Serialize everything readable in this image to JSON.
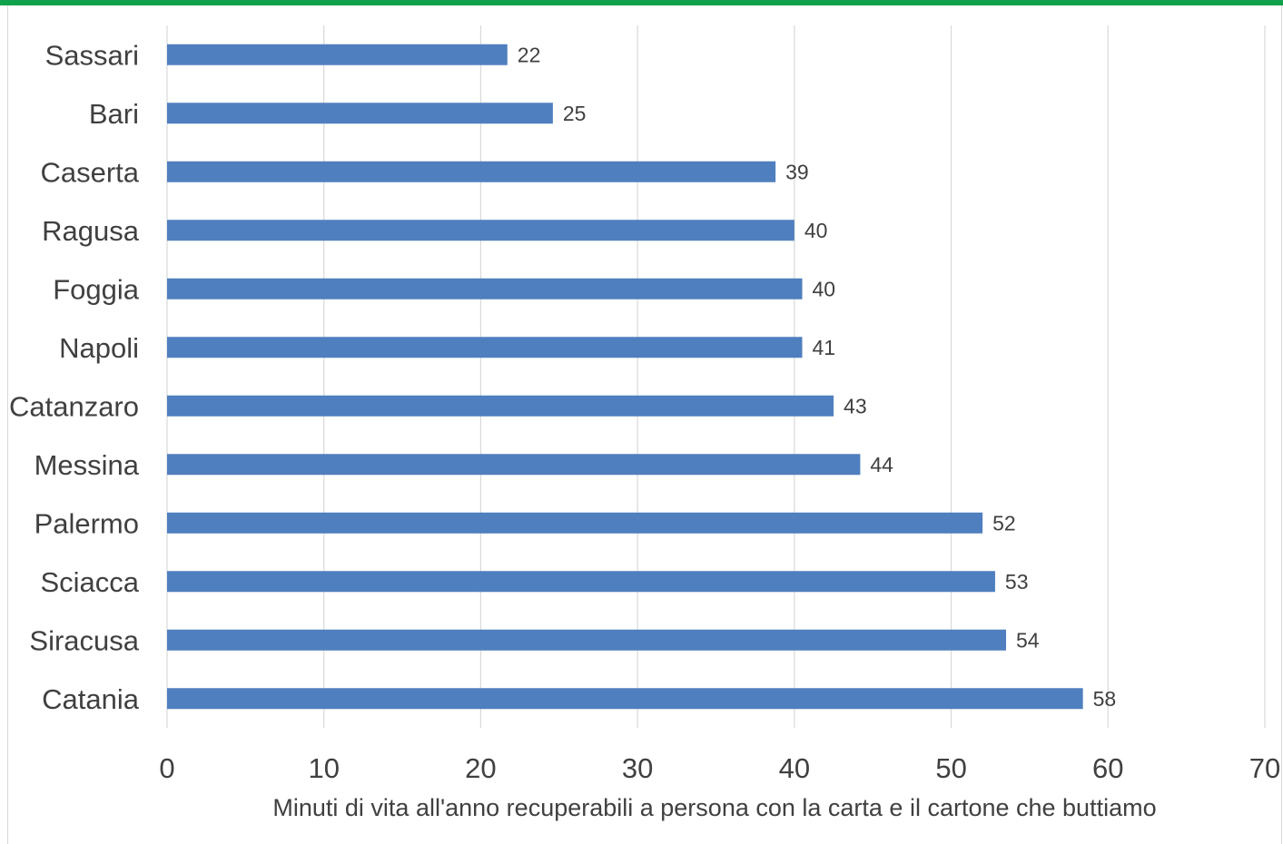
{
  "chart_data": {
    "type": "bar",
    "orientation": "horizontal",
    "categories": [
      "Sassari",
      "Bari",
      "Caserta",
      "Ragusa",
      "Foggia",
      "Napoli",
      "Catanzaro",
      "Messina",
      "Palermo",
      "Sciacca",
      "Siracusa",
      "Catania"
    ],
    "values": [
      21.7,
      24.6,
      38.8,
      40.0,
      40.5,
      40.5,
      42.5,
      44.2,
      52.0,
      52.8,
      53.5,
      58.4
    ],
    "data_labels": [
      "22",
      "25",
      "39",
      "40",
      "40",
      "41",
      "43",
      "44",
      "52",
      "53",
      "54",
      "58"
    ],
    "title": "",
    "xlabel": "Minuti di vita all'anno recuperabili a persona con la carta e il cartone che buttiamo",
    "ylabel": "",
    "xlim": [
      0,
      70
    ],
    "xticks": [
      0,
      10,
      20,
      30,
      40,
      50,
      60,
      70
    ],
    "grid": "vertical",
    "legend": "none",
    "colors": {
      "bar": "#4f7fbe",
      "grid": "#d9d9d9",
      "text": "#404040",
      "accent_bar": "#10a24a"
    }
  }
}
